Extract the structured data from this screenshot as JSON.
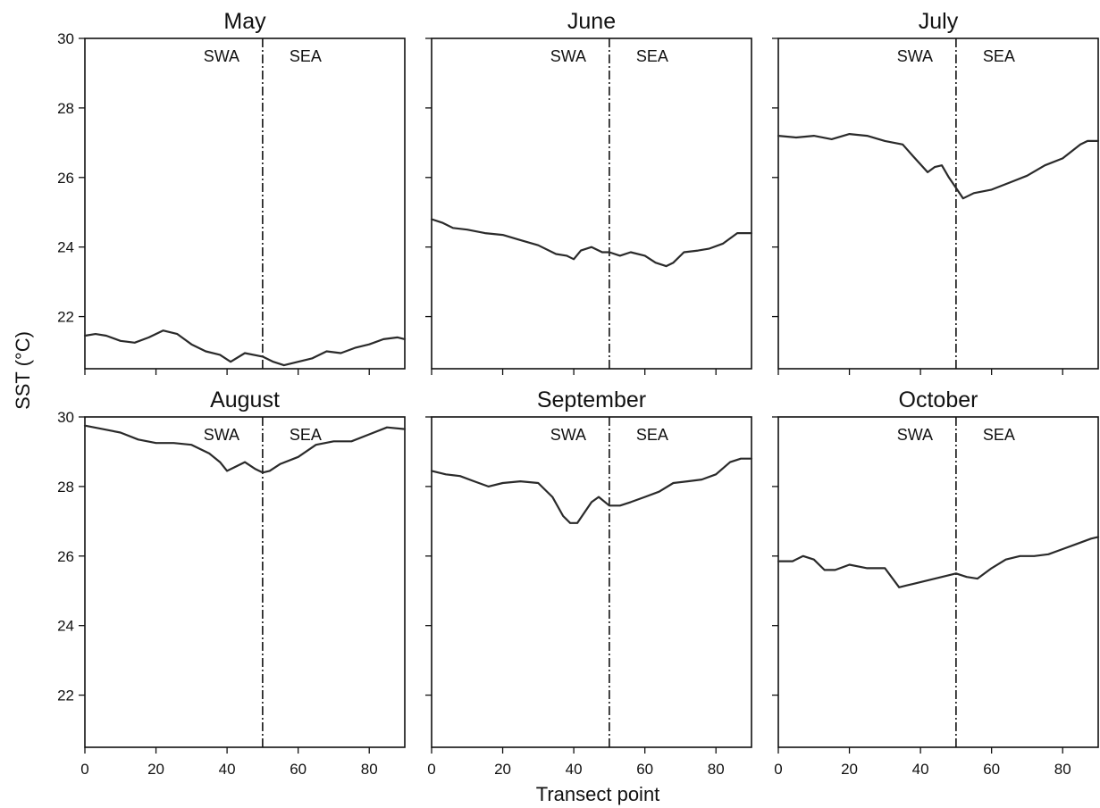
{
  "chart_data": {
    "type": "line",
    "layout": "2x3 small multiples, shared x and y axes",
    "xlabel": "Transect point",
    "ylabel": "SST (°C)",
    "xlim": [
      0,
      90
    ],
    "ylim": [
      20.5,
      30
    ],
    "x_ticks": [
      0,
      20,
      40,
      60,
      80
    ],
    "y_ticks": [
      22,
      24,
      26,
      28,
      30
    ],
    "divider_x": 50,
    "region_labels": [
      "SWA",
      "SEA"
    ],
    "line_color": "#2a2a2a",
    "grid": false,
    "panels": [
      {
        "title": "May",
        "x": [
          0,
          3,
          6,
          10,
          14,
          18,
          22,
          26,
          30,
          34,
          38,
          41,
          45,
          50,
          53,
          56,
          60,
          64,
          68,
          72,
          76,
          80,
          84,
          88,
          90
        ],
        "y": [
          21.45,
          21.5,
          21.45,
          21.3,
          21.25,
          21.4,
          21.6,
          21.5,
          21.2,
          21.0,
          20.9,
          20.7,
          20.95,
          20.85,
          20.7,
          20.6,
          20.7,
          20.8,
          21.0,
          20.95,
          21.1,
          21.2,
          21.35,
          21.4,
          21.35
        ]
      },
      {
        "title": "June",
        "x": [
          0,
          3,
          6,
          10,
          15,
          20,
          25,
          30,
          35,
          38,
          40,
          42,
          45,
          48,
          50,
          53,
          56,
          60,
          63,
          66,
          68,
          71,
          75,
          78,
          82,
          86,
          90
        ],
        "y": [
          24.8,
          24.7,
          24.55,
          24.5,
          24.4,
          24.35,
          24.2,
          24.05,
          23.8,
          23.75,
          23.65,
          23.9,
          24.0,
          23.85,
          23.85,
          23.75,
          23.85,
          23.75,
          23.55,
          23.45,
          23.55,
          23.85,
          23.9,
          23.95,
          24.1,
          24.4,
          24.4
        ]
      },
      {
        "title": "July",
        "x": [
          0,
          5,
          10,
          15,
          20,
          25,
          30,
          35,
          38,
          42,
          44,
          46,
          48,
          50,
          52,
          55,
          60,
          65,
          70,
          75,
          80,
          85,
          87,
          90
        ],
        "y": [
          27.2,
          27.15,
          27.2,
          27.1,
          27.25,
          27.2,
          27.05,
          26.95,
          26.6,
          26.15,
          26.3,
          26.35,
          26.0,
          25.7,
          25.4,
          25.55,
          25.65,
          25.85,
          26.05,
          26.35,
          26.55,
          26.95,
          27.05,
          27.05
        ]
      },
      {
        "title": "August",
        "x": [
          0,
          5,
          10,
          15,
          20,
          25,
          30,
          35,
          38,
          40,
          42,
          45,
          48,
          50,
          52,
          55,
          60,
          65,
          70,
          75,
          80,
          85,
          90
        ],
        "y": [
          29.75,
          29.65,
          29.55,
          29.35,
          29.25,
          29.25,
          29.2,
          28.95,
          28.7,
          28.45,
          28.55,
          28.7,
          28.5,
          28.4,
          28.45,
          28.65,
          28.85,
          29.2,
          29.3,
          29.3,
          29.5,
          29.7,
          29.65
        ]
      },
      {
        "title": "September",
        "x": [
          0,
          4,
          8,
          12,
          16,
          20,
          25,
          30,
          34,
          37,
          39,
          41,
          43,
          45,
          47,
          50,
          53,
          56,
          60,
          64,
          68,
          72,
          76,
          80,
          84,
          87,
          90
        ],
        "y": [
          28.45,
          28.35,
          28.3,
          28.15,
          28.0,
          28.1,
          28.15,
          28.1,
          27.7,
          27.15,
          26.95,
          26.95,
          27.25,
          27.55,
          27.7,
          27.45,
          27.45,
          27.55,
          27.7,
          27.85,
          28.1,
          28.15,
          28.2,
          28.35,
          28.7,
          28.8,
          28.8
        ]
      },
      {
        "title": "October",
        "x": [
          0,
          4,
          7,
          10,
          13,
          16,
          20,
          25,
          30,
          34,
          38,
          42,
          46,
          50,
          53,
          56,
          60,
          64,
          68,
          72,
          76,
          80,
          84,
          88,
          90
        ],
        "y": [
          25.85,
          25.85,
          26.0,
          25.9,
          25.6,
          25.6,
          25.75,
          25.65,
          25.65,
          25.1,
          25.2,
          25.3,
          25.4,
          25.5,
          25.4,
          25.35,
          25.65,
          25.9,
          26.0,
          26.0,
          26.05,
          26.2,
          26.35,
          26.5,
          26.55
        ]
      }
    ]
  }
}
